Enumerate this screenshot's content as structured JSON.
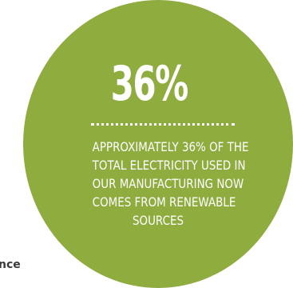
{
  "fragment_text": "nce",
  "stat": {
    "value": "36%",
    "caption_lines": [
      "APPROXIMATELY 36% OF THE",
      "TOTAL ELECTRICITY USED IN",
      "OUR MANUFACTURING NOW",
      "COMES FROM RENEWABLE",
      "SOURCES"
    ]
  },
  "colors": {
    "circle": "#8fac3f",
    "text": "#ffffff"
  }
}
